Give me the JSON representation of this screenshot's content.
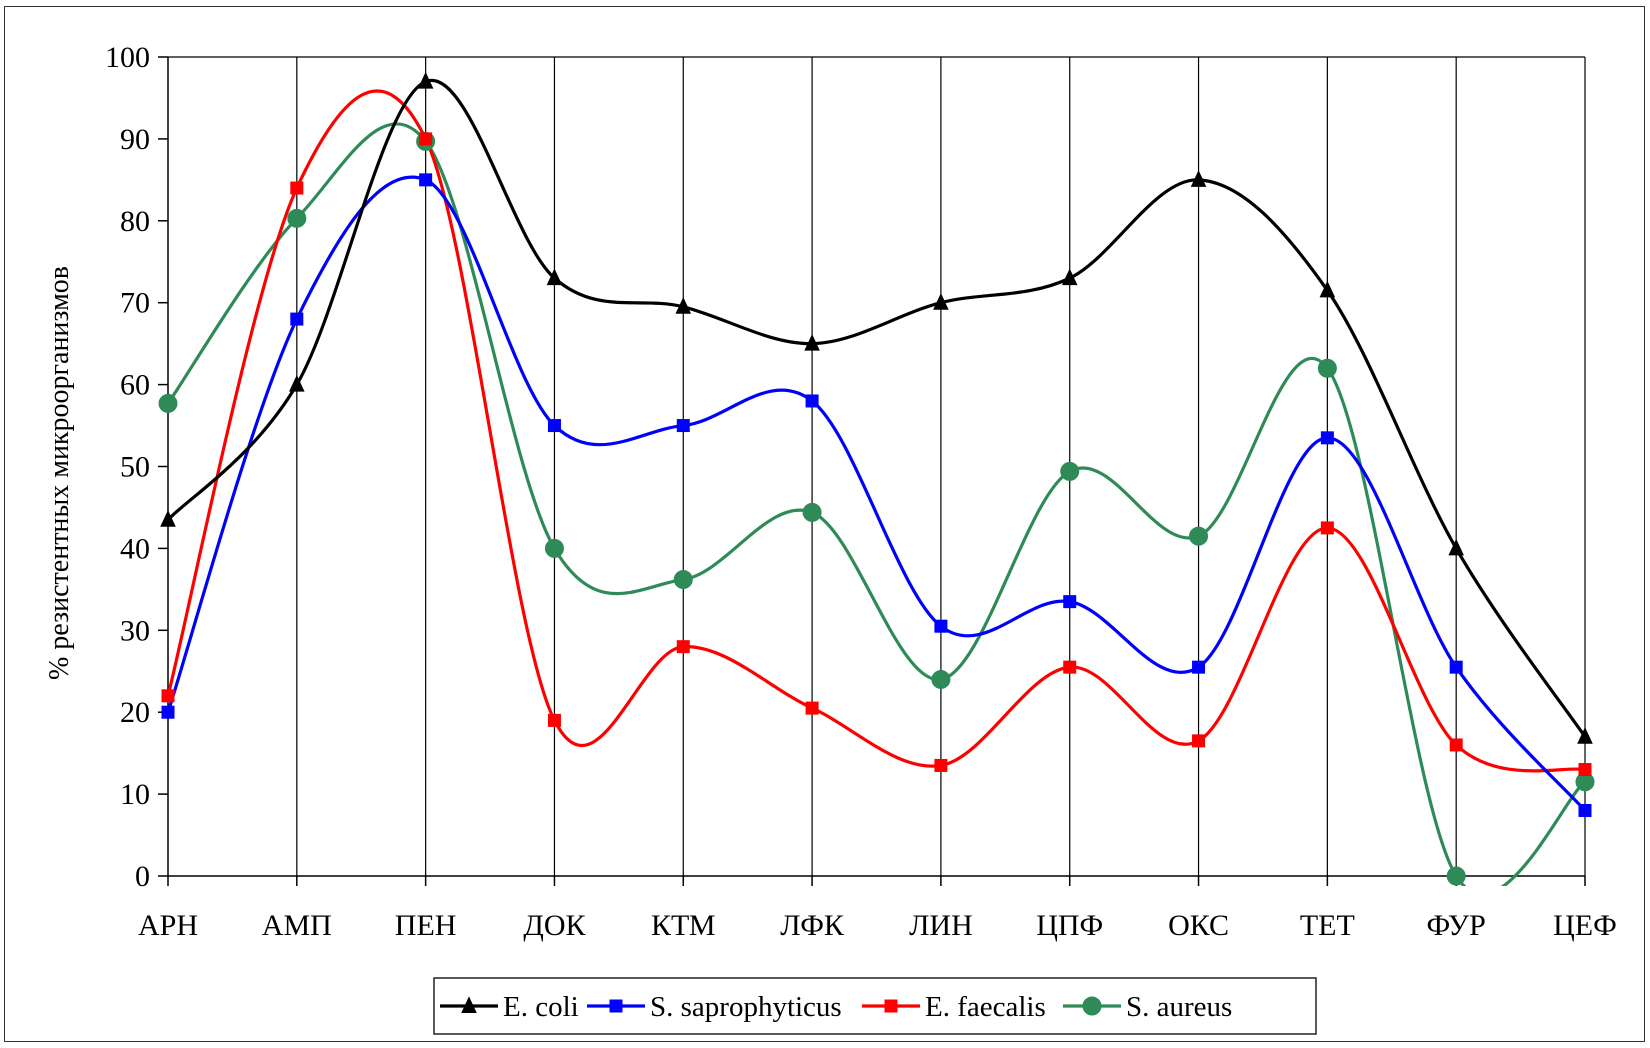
{
  "chart_data": {
    "type": "line",
    "title": "",
    "xlabel": "",
    "ylabel": "% резистентных микроорганизмов",
    "ylim": [
      0,
      100
    ],
    "yticks": [
      0,
      10,
      20,
      30,
      40,
      50,
      60,
      70,
      80,
      90,
      100
    ],
    "grid": "vertical",
    "legend_position": "bottom",
    "smooth": true,
    "categories": [
      "АРН",
      "АМП",
      "ПЕН",
      "ДОК",
      "КТМ",
      "ЛФК",
      "ЛИН",
      "ЦПФ",
      "ОКС",
      "ТЕТ",
      "ФУР",
      "ЦЕФ"
    ],
    "series": [
      {
        "name": "E. coli",
        "color": "#000000",
        "marker": "triangle",
        "values": [
          43.5,
          60,
          97,
          73,
          69.5,
          65,
          70,
          73,
          85,
          71.5,
          40,
          17
        ]
      },
      {
        "name": "S. saprophyticus",
        "color": "#0000ff",
        "marker": "square",
        "values": [
          20,
          68,
          85,
          55,
          55,
          58,
          30.5,
          33.5,
          25.5,
          53.5,
          25.5,
          8
        ]
      },
      {
        "name": "E. faecalis",
        "color": "#ff0000",
        "marker": "square",
        "values": [
          22,
          84,
          90,
          19,
          28,
          20.5,
          13.5,
          25.5,
          16.5,
          42.5,
          16,
          13
        ]
      },
      {
        "name": "S. aureus",
        "color": "#2e8b57",
        "marker": "circle",
        "values": [
          57.7,
          80.3,
          89.7,
          40,
          36.2,
          44.4,
          24,
          49.4,
          41.5,
          62,
          0,
          11.5
        ]
      }
    ]
  }
}
